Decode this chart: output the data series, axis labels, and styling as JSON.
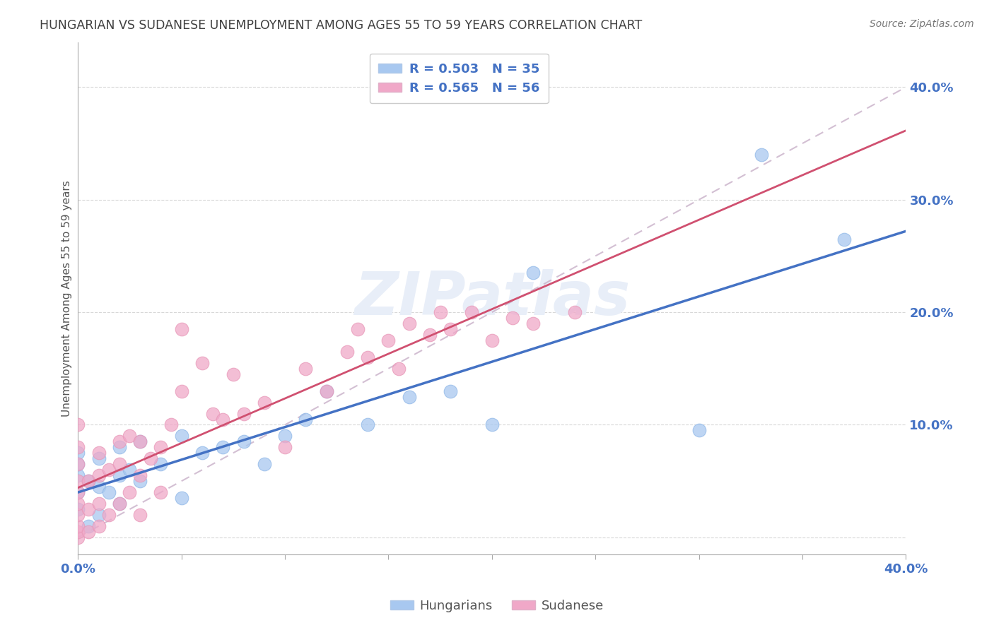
{
  "title": "HUNGARIAN VS SUDANESE UNEMPLOYMENT AMONG AGES 55 TO 59 YEARS CORRELATION CHART",
  "source": "Source: ZipAtlas.com",
  "ylabel": "Unemployment Among Ages 55 to 59 years",
  "xlim": [
    0.0,
    0.4
  ],
  "ylim": [
    -0.015,
    0.44
  ],
  "hungarian_R": 0.503,
  "hungarian_N": 35,
  "sudanese_R": 0.565,
  "sudanese_N": 56,
  "hungarian_color": "#a8c8f0",
  "sudanese_color": "#f0a8c8",
  "hungarian_line_color": "#4472c4",
  "sudanese_line_color": "#d05070",
  "diagonal_color": "#c8b0c8",
  "background_color": "#ffffff",
  "label_color": "#4472c4",
  "title_color": "#404040",
  "hungarian_points_x": [
    0.0,
    0.0,
    0.0,
    0.0,
    0.0,
    0.005,
    0.005,
    0.01,
    0.01,
    0.01,
    0.015,
    0.02,
    0.02,
    0.02,
    0.025,
    0.03,
    0.03,
    0.04,
    0.05,
    0.05,
    0.06,
    0.07,
    0.08,
    0.09,
    0.1,
    0.11,
    0.12,
    0.14,
    0.16,
    0.18,
    0.2,
    0.22,
    0.3,
    0.33,
    0.37
  ],
  "hungarian_points_y": [
    0.025,
    0.04,
    0.055,
    0.065,
    0.075,
    0.01,
    0.05,
    0.02,
    0.045,
    0.07,
    0.04,
    0.03,
    0.055,
    0.08,
    0.06,
    0.05,
    0.085,
    0.065,
    0.035,
    0.09,
    0.075,
    0.08,
    0.085,
    0.065,
    0.09,
    0.105,
    0.13,
    0.1,
    0.125,
    0.13,
    0.1,
    0.235,
    0.095,
    0.34,
    0.265
  ],
  "sudanese_points_x": [
    0.0,
    0.0,
    0.0,
    0.0,
    0.0,
    0.0,
    0.0,
    0.0,
    0.0,
    0.0,
    0.005,
    0.005,
    0.005,
    0.01,
    0.01,
    0.01,
    0.01,
    0.015,
    0.015,
    0.02,
    0.02,
    0.02,
    0.025,
    0.025,
    0.03,
    0.03,
    0.03,
    0.035,
    0.04,
    0.04,
    0.045,
    0.05,
    0.05,
    0.06,
    0.065,
    0.07,
    0.075,
    0.08,
    0.09,
    0.1,
    0.11,
    0.12,
    0.13,
    0.135,
    0.14,
    0.15,
    0.155,
    0.16,
    0.17,
    0.175,
    0.18,
    0.19,
    0.2,
    0.21,
    0.22,
    0.24
  ],
  "sudanese_points_y": [
    0.0,
    0.005,
    0.01,
    0.02,
    0.03,
    0.04,
    0.05,
    0.065,
    0.08,
    0.1,
    0.005,
    0.025,
    0.05,
    0.01,
    0.03,
    0.055,
    0.075,
    0.02,
    0.06,
    0.03,
    0.065,
    0.085,
    0.04,
    0.09,
    0.02,
    0.055,
    0.085,
    0.07,
    0.04,
    0.08,
    0.1,
    0.13,
    0.185,
    0.155,
    0.11,
    0.105,
    0.145,
    0.11,
    0.12,
    0.08,
    0.15,
    0.13,
    0.165,
    0.185,
    0.16,
    0.175,
    0.15,
    0.19,
    0.18,
    0.2,
    0.185,
    0.2,
    0.175,
    0.195,
    0.19,
    0.2
  ]
}
